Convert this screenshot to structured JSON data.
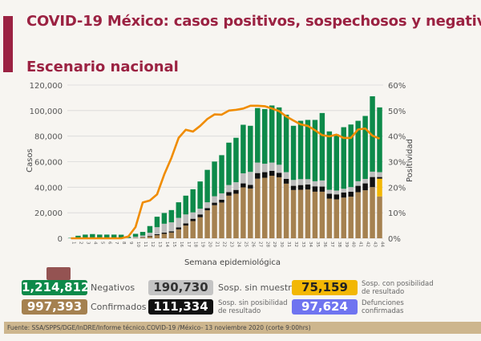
{
  "header": {
    "title": "COVID-19 México: casos positivos, sospechosos y negativos",
    "subtitle": "Escenario nacional"
  },
  "colors": {
    "title": "#9b2242",
    "confirmados": "#a58150",
    "sin_posibilidad": "#111111",
    "sin_muestra": "#bdbdbd",
    "con_posibilidad": "#f2b705",
    "negativos": "#0d8a4a",
    "positividad": "#f08c00",
    "defunciones": "#6f74f0"
  },
  "chart_data": {
    "type": "bar",
    "stacked": true,
    "xlabel": "Semana epidemiológica",
    "ylabel": "Casos",
    "y2label": "Positividad",
    "ylim": [
      0,
      120000
    ],
    "y2lim": [
      0,
      60
    ],
    "yticks": [
      "0",
      "20,000",
      "40,000",
      "60,000",
      "80,000",
      "100,000",
      "120,000"
    ],
    "y2ticks": [
      "0%",
      "10%",
      "20%",
      "30%",
      "40%",
      "50%",
      "60%"
    ],
    "grid": true,
    "categories": [
      "1",
      "2",
      "3",
      "4",
      "5",
      "6",
      "7",
      "8",
      "9",
      "10",
      "11",
      "12",
      "13",
      "14",
      "15",
      "16",
      "17",
      "18",
      "19",
      "20",
      "21",
      "22",
      "23",
      "24",
      "25",
      "26",
      "27",
      "28",
      "29",
      "30",
      "31",
      "32",
      "33",
      "34",
      "35",
      "36",
      "37",
      "38",
      "39",
      "40",
      "41",
      "42",
      "43",
      "44"
    ],
    "series": [
      {
        "key": "confirmados",
        "values": [
          0,
          0,
          0,
          0,
          0,
          0,
          0,
          0,
          100,
          300,
          800,
          1500,
          2500,
          3500,
          4500,
          7000,
          10000,
          13500,
          16500,
          21900,
          25900,
          28000,
          33400,
          34900,
          39900,
          39000,
          46700,
          47400,
          49000,
          47800,
          42800,
          37800,
          38000,
          38200,
          36500,
          36500,
          31100,
          30500,
          31900,
          32600,
          36100,
          37600,
          40100,
          32800
        ]
      },
      {
        "key": "con_posibilidad",
        "values": [
          0,
          0,
          0,
          0,
          0,
          0,
          0,
          0,
          0,
          0,
          0,
          0,
          0,
          0,
          0,
          0,
          0,
          0,
          0,
          0,
          0,
          0,
          0,
          0,
          0,
          0,
          0,
          0,
          0,
          0,
          0,
          0,
          0,
          0,
          0,
          0,
          0,
          0,
          0,
          0,
          0,
          0,
          0,
          13900
        ]
      },
      {
        "key": "sin_posibilidad",
        "values": [
          0,
          0,
          0,
          0,
          0,
          0,
          0,
          0,
          0,
          100,
          200,
          400,
          700,
          900,
          1000,
          1500,
          1700,
          1800,
          2200,
          1800,
          2000,
          2200,
          2800,
          3000,
          3100,
          2800,
          4400,
          4400,
          3800,
          3500,
          3700,
          3300,
          3700,
          3900,
          4200,
          4000,
          3800,
          3900,
          4000,
          3900,
          5000,
          5400,
          7900,
          1300
        ]
      },
      {
        "key": "sin_muestra",
        "values": [
          0,
          200,
          200,
          200,
          200,
          200,
          200,
          200,
          200,
          800,
          1200,
          2500,
          5500,
          7000,
          7000,
          7500,
          7000,
          5000,
          4500,
          4500,
          5000,
          5000,
          5500,
          6000,
          7900,
          10200,
          8200,
          6600,
          6500,
          6300,
          5300,
          4600,
          4600,
          4200,
          4000,
          4800,
          3100,
          3000,
          2900,
          3600,
          3600,
          3500,
          4200,
          3800
        ]
      },
      {
        "key": "negativos",
        "values": [
          300,
          1800,
          2700,
          3100,
          2700,
          2700,
          2700,
          2600,
          900,
          2300,
          2800,
          5200,
          8200,
          8400,
          9600,
          12200,
          14700,
          18100,
          21300,
          25400,
          27200,
          29900,
          33200,
          34800,
          38000,
          36100,
          42700,
          42800,
          44700,
          44900,
          45000,
          42400,
          45700,
          46400,
          48000,
          52800,
          45700,
          44000,
          48200,
          49000,
          47300,
          49300,
          59000,
          50700
        ]
      }
    ],
    "positividad": [
      0,
      0,
      0,
      0,
      0,
      0,
      0,
      0,
      0.7,
      4.4,
      14,
      14.8,
      17.2,
      25,
      31.5,
      39.3,
      42.5,
      41.8,
      44,
      46.7,
      48.5,
      48.4,
      50,
      50.3,
      50.8,
      51.9,
      51.9,
      51.7,
      50.8,
      49.8,
      47.7,
      46.1,
      44.6,
      44,
      42.3,
      40.4,
      39.9,
      40.6,
      39.3,
      39.3,
      42.6,
      43,
      40.2,
      39
    ]
  },
  "legend": [
    {
      "key": "negativos",
      "value": "1,214,812",
      "label": "Negativos"
    },
    {
      "key": "sin_muestra",
      "value": "190,730",
      "label": "Sosp. sin muestra"
    },
    {
      "key": "con_posibilidad",
      "value": "75,159",
      "label": "Sosp. con posibilidad de resultado"
    },
    {
      "key": "confirmados",
      "value": "997,393",
      "label": "Confirmados"
    },
    {
      "key": "sin_posibilidad",
      "value": "111,334",
      "label": "Sosp. sin posibilidad de resultado"
    },
    {
      "key": "defunciones",
      "value": "97,624",
      "label": "Defunciones confirmadas"
    }
  ],
  "footer": "Fuente: SSA/SPPS/DGE/InDRE/Informe técnico.COVID-19 /México- 13 noviembre 2020 (corte 9:00hrs)"
}
